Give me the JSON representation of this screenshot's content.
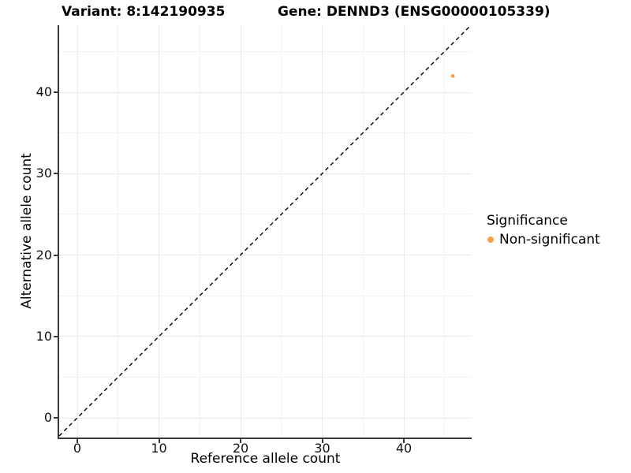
{
  "titles": {
    "variant": "Variant: 8:142190935",
    "gene": "Gene: DENND3 (ENSG00000105339)"
  },
  "axes": {
    "x_label": "Reference allele count",
    "y_label": "Alternative allele count"
  },
  "legend": {
    "title": "Significance",
    "items": [
      {
        "label": "Non-significant",
        "color": "#F9A242"
      }
    ]
  },
  "colors": {
    "point": "#F9A242",
    "axis_line": "#383838",
    "grid_major": "#E9E9E9",
    "grid_minor": "#F2F2F2",
    "dashed_line": "#000000",
    "tick_text": "#111111"
  },
  "chart_data": {
    "type": "scatter",
    "title": "Variant: 8:142190935   |   Gene: DENND3 (ENSG00000105339)",
    "xlabel": "Reference allele count",
    "ylabel": "Alternative allele count",
    "xlim": [
      -2.3,
      48.3
    ],
    "ylim": [
      -2.3,
      48.2
    ],
    "x_major_ticks": [
      0,
      10,
      20,
      30,
      40
    ],
    "x_minor_ticks": [
      5,
      15,
      25,
      35,
      45
    ],
    "y_major_ticks": [
      0,
      10,
      20,
      30,
      40
    ],
    "y_minor_ticks": [
      5,
      15,
      25,
      35,
      45
    ],
    "grid": "major and minor gridlines, light gray on white background",
    "legend_position": "right",
    "series": [
      {
        "name": "Non-significant",
        "color": "#F9A242",
        "points": [
          {
            "x": 46,
            "y": 42
          }
        ]
      }
    ],
    "reference_line": {
      "type": "identity y=x",
      "style": "dashed",
      "color": "#000000"
    }
  }
}
